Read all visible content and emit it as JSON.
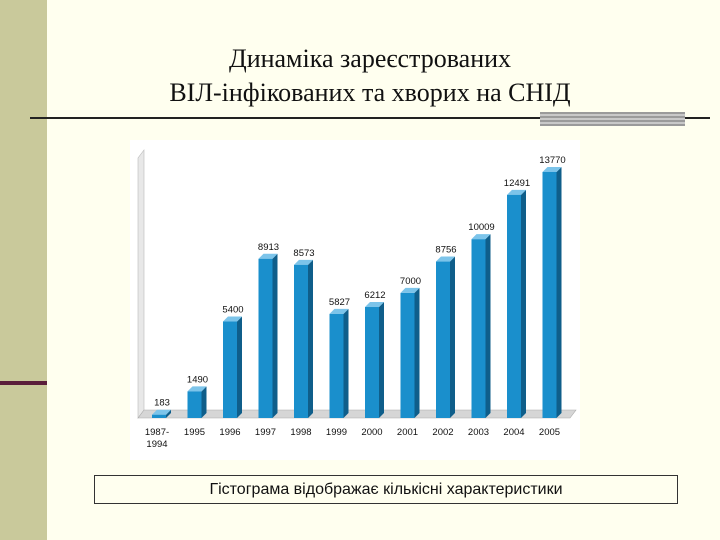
{
  "slide": {
    "title_line1": "Динаміка зареєстрованих",
    "title_line2": "ВІЛ-інфікованих та хворих на СНІД",
    "caption": "Гістограма відображає кількісні характеристики"
  },
  "colors": {
    "bar": "#1a8fcc",
    "bar_dark": "#0f5e8a",
    "bar_top": "#7cc4ea"
  },
  "chart_data": {
    "type": "bar",
    "title": "",
    "xlabel": "",
    "ylabel": "",
    "categories": [
      [
        "1987-",
        "1994"
      ],
      [
        "1995"
      ],
      [
        "1996"
      ],
      [
        "1997"
      ],
      [
        "1998"
      ],
      [
        "1999"
      ],
      [
        "2000"
      ],
      [
        "2001"
      ],
      [
        "2002"
      ],
      [
        "2003"
      ],
      [
        "2004"
      ],
      [
        "2005"
      ]
    ],
    "values": [
      183,
      1490,
      5400,
      8913,
      8573,
      5827,
      6212,
      7000,
      8756,
      10009,
      12491,
      13770
    ],
    "ylim": [
      0,
      15000
    ],
    "grid": false
  }
}
